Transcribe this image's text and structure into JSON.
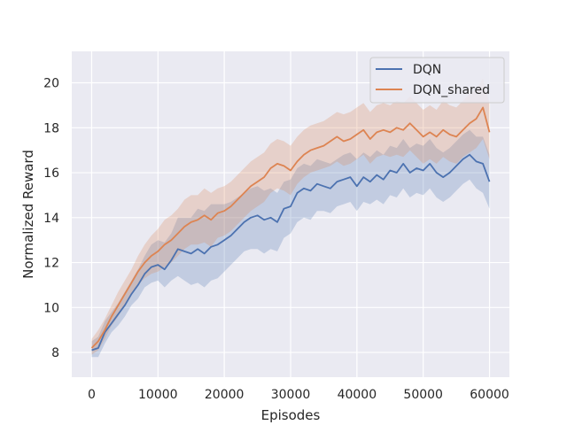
{
  "chart_data": {
    "type": "line",
    "title": "",
    "xlabel": "Episodes",
    "ylabel": "Normalized Reward",
    "xlim": [
      -3000,
      63000
    ],
    "ylim": [
      6.9,
      21.4
    ],
    "x_ticks": [
      0,
      10000,
      20000,
      30000,
      40000,
      50000,
      60000
    ],
    "x_tick_labels": [
      "0",
      "10000",
      "20000",
      "30000",
      "40000",
      "50000",
      "60000"
    ],
    "y_ticks": [
      8,
      10,
      12,
      14,
      16,
      18,
      20
    ],
    "y_tick_labels": [
      "8",
      "10",
      "12",
      "14",
      "16",
      "18",
      "20"
    ],
    "grid": true,
    "legend_position": "top-right",
    "x": [
      0,
      1000,
      2000,
      3000,
      4000,
      5000,
      6000,
      7000,
      8000,
      9000,
      10000,
      11000,
      12000,
      13000,
      14000,
      15000,
      16000,
      17000,
      18000,
      19000,
      20000,
      21000,
      22000,
      23000,
      24000,
      25000,
      26000,
      27000,
      28000,
      29000,
      30000,
      31000,
      32000,
      33000,
      34000,
      35000,
      36000,
      37000,
      38000,
      39000,
      40000,
      41000,
      42000,
      43000,
      44000,
      45000,
      46000,
      47000,
      48000,
      49000,
      50000,
      51000,
      52000,
      53000,
      54000,
      55000,
      56000,
      57000,
      58000,
      59000,
      60000
    ],
    "series": [
      {
        "name": "DQN",
        "color": "#4c72b0",
        "values": [
          8.1,
          8.2,
          8.9,
          9.3,
          9.7,
          10.1,
          10.6,
          11.0,
          11.5,
          11.8,
          11.9,
          11.7,
          12.1,
          12.6,
          12.5,
          12.4,
          12.6,
          12.4,
          12.7,
          12.8,
          13.0,
          13.2,
          13.5,
          13.8,
          14.0,
          14.1,
          13.9,
          14.0,
          13.8,
          14.4,
          14.5,
          15.1,
          15.3,
          15.2,
          15.5,
          15.4,
          15.3,
          15.6,
          15.7,
          15.8,
          15.4,
          15.8,
          15.6,
          15.9,
          15.7,
          16.1,
          16.0,
          16.4,
          16.0,
          16.2,
          16.1,
          16.4,
          16.0,
          15.8,
          16.0,
          16.3,
          16.6,
          16.8,
          16.5,
          16.4,
          15.6
        ],
        "lower": [
          7.8,
          7.8,
          8.4,
          8.9,
          9.2,
          9.6,
          10.1,
          10.4,
          10.9,
          11.1,
          11.2,
          10.9,
          11.2,
          11.4,
          11.2,
          11.0,
          11.1,
          10.9,
          11.2,
          11.3,
          11.6,
          11.9,
          12.2,
          12.5,
          12.6,
          12.6,
          12.4,
          12.6,
          12.5,
          13.1,
          13.3,
          13.8,
          14.0,
          13.9,
          14.3,
          14.3,
          14.2,
          14.5,
          14.6,
          14.7,
          14.3,
          14.7,
          14.6,
          14.8,
          14.6,
          15.0,
          14.9,
          15.3,
          14.9,
          15.1,
          15.0,
          15.3,
          14.9,
          14.7,
          14.9,
          15.2,
          15.5,
          15.7,
          15.3,
          15.1,
          14.4
        ],
        "upper": [
          8.5,
          8.7,
          9.4,
          9.8,
          10.2,
          10.7,
          11.2,
          11.7,
          12.3,
          12.8,
          13.0,
          12.9,
          13.3,
          14.0,
          14.0,
          14.0,
          14.4,
          14.3,
          14.6,
          14.6,
          14.6,
          14.7,
          14.9,
          15.1,
          15.3,
          15.4,
          15.2,
          15.3,
          15.1,
          15.6,
          15.7,
          16.2,
          16.4,
          16.3,
          16.6,
          16.5,
          16.4,
          16.6,
          16.8,
          16.9,
          16.6,
          16.9,
          16.7,
          17.0,
          16.8,
          17.2,
          17.1,
          17.5,
          17.1,
          17.3,
          17.2,
          17.5,
          17.1,
          16.9,
          17.1,
          17.4,
          17.7,
          17.9,
          17.6,
          17.6,
          16.8
        ]
      },
      {
        "name": "DQN_shared",
        "color": "#dd8452",
        "values": [
          8.2,
          8.5,
          9.0,
          9.6,
          10.1,
          10.6,
          11.1,
          11.6,
          12.0,
          12.3,
          12.5,
          12.8,
          13.0,
          13.3,
          13.6,
          13.8,
          13.9,
          14.1,
          13.9,
          14.2,
          14.3,
          14.5,
          14.8,
          15.1,
          15.4,
          15.6,
          15.8,
          16.2,
          16.4,
          16.3,
          16.1,
          16.5,
          16.8,
          17.0,
          17.1,
          17.2,
          17.4,
          17.6,
          17.4,
          17.5,
          17.7,
          17.9,
          17.5,
          17.8,
          17.9,
          17.8,
          18.0,
          17.9,
          18.2,
          17.9,
          17.6,
          17.8,
          17.6,
          17.9,
          17.7,
          17.6,
          17.9,
          18.2,
          18.4,
          18.9,
          17.8
        ],
        "lower": [
          7.9,
          8.1,
          8.6,
          9.2,
          9.6,
          10.1,
          10.6,
          11.0,
          11.3,
          11.5,
          11.6,
          11.8,
          12.0,
          12.3,
          12.6,
          12.8,
          12.8,
          12.9,
          12.7,
          13.1,
          13.2,
          13.4,
          13.7,
          14.0,
          14.3,
          14.5,
          14.7,
          15.1,
          15.3,
          15.2,
          15.0,
          15.5,
          15.8,
          16.0,
          16.1,
          16.2,
          16.3,
          16.5,
          16.3,
          16.4,
          16.6,
          16.8,
          16.4,
          16.7,
          16.8,
          16.7,
          16.8,
          16.7,
          17.0,
          16.7,
          16.4,
          16.6,
          16.4,
          16.7,
          16.5,
          16.4,
          16.7,
          16.9,
          17.1,
          17.5,
          16.6
        ],
        "upper": [
          8.6,
          9.0,
          9.5,
          10.1,
          10.7,
          11.2,
          11.7,
          12.3,
          12.8,
          13.2,
          13.5,
          13.9,
          14.1,
          14.4,
          14.8,
          15.0,
          15.0,
          15.3,
          15.1,
          15.3,
          15.4,
          15.6,
          15.9,
          16.2,
          16.5,
          16.7,
          16.9,
          17.3,
          17.5,
          17.4,
          17.2,
          17.6,
          17.9,
          18.1,
          18.2,
          18.3,
          18.5,
          18.7,
          18.6,
          18.7,
          18.9,
          19.1,
          18.7,
          19.0,
          19.1,
          19.0,
          19.2,
          19.1,
          19.4,
          19.1,
          18.8,
          19.0,
          18.8,
          19.2,
          19.0,
          18.9,
          19.2,
          19.5,
          19.7,
          20.2,
          19.1
        ]
      }
    ]
  }
}
